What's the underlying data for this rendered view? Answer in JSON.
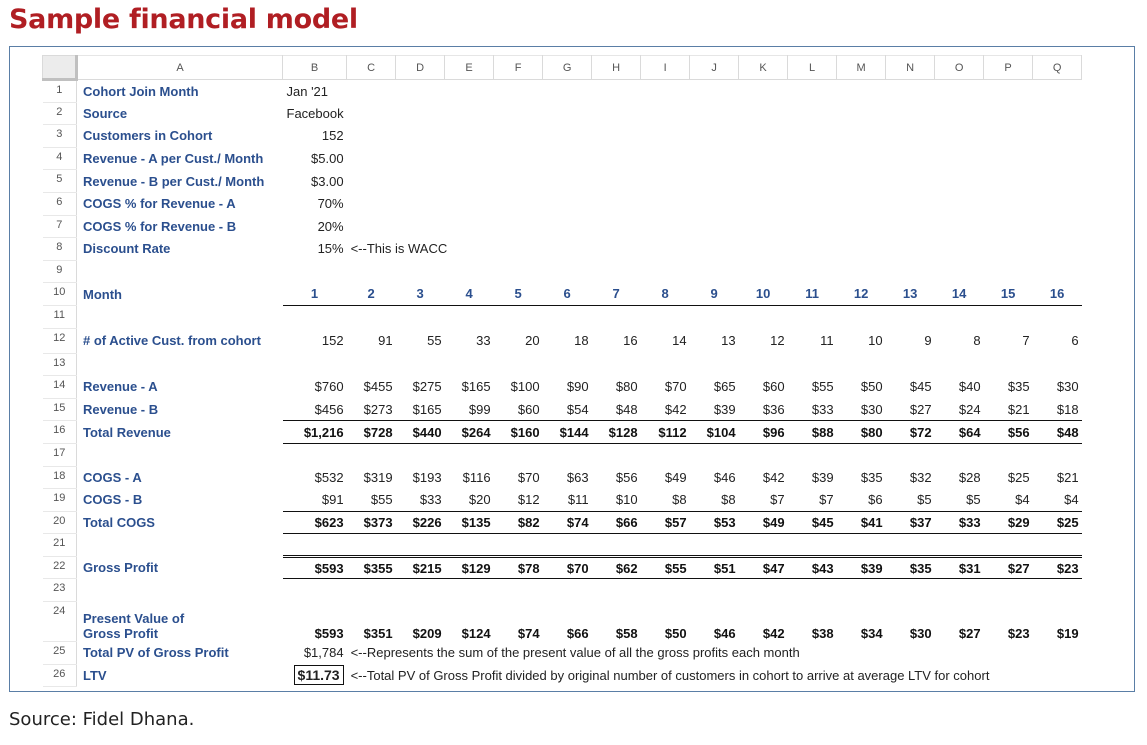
{
  "title": "Sample financial model",
  "source": "Source: Fidel Dhana.",
  "columns": [
    "A",
    "B",
    "C",
    "D",
    "E",
    "F",
    "G",
    "H",
    "I",
    "J",
    "K",
    "L",
    "M",
    "N",
    "O",
    "P",
    "Q"
  ],
  "inputs": {
    "r1": {
      "num": "1",
      "label": "Cohort Join Month",
      "value": "Jan '21"
    },
    "r2": {
      "num": "2",
      "label": "Source",
      "value": "Facebook"
    },
    "r3": {
      "num": "3",
      "label": "Customers in Cohort",
      "value": "152"
    },
    "r4": {
      "num": "4",
      "label": "Revenue - A per Cust./ Month",
      "value": "$5.00"
    },
    "r5": {
      "num": "5",
      "label": "Revenue - B per Cust./ Month",
      "value": "$3.00"
    },
    "r6": {
      "num": "6",
      "label": "COGS % for Revenue - A",
      "value": "70%"
    },
    "r7": {
      "num": "7",
      "label": "COGS % for Revenue - B",
      "value": "20%"
    },
    "r8": {
      "num": "8",
      "label": "Discount Rate",
      "value": "15%",
      "note": "<--This is WACC"
    }
  },
  "blank_rows": {
    "r9": "9",
    "r11": "11",
    "r13": "13",
    "r17": "17",
    "r21": "21",
    "r23": "23"
  },
  "month": {
    "num": "10",
    "label": "Month",
    "values": [
      "1",
      "2",
      "3",
      "4",
      "5",
      "6",
      "7",
      "8",
      "9",
      "10",
      "11",
      "12",
      "13",
      "14",
      "15",
      "16"
    ]
  },
  "active": {
    "num": "12",
    "label": "# of Active Cust. from cohort",
    "values": [
      "152",
      "91",
      "55",
      "33",
      "20",
      "18",
      "16",
      "14",
      "13",
      "12",
      "11",
      "10",
      "9",
      "8",
      "7",
      "6"
    ]
  },
  "rev_a": {
    "num": "14",
    "label": "Revenue - A",
    "values": [
      "$760",
      "$455",
      "$275",
      "$165",
      "$100",
      "$90",
      "$80",
      "$70",
      "$65",
      "$60",
      "$55",
      "$50",
      "$45",
      "$40",
      "$35",
      "$30"
    ]
  },
  "rev_b": {
    "num": "15",
    "label": "Revenue - B",
    "values": [
      "$456",
      "$273",
      "$165",
      "$99",
      "$60",
      "$54",
      "$48",
      "$42",
      "$39",
      "$36",
      "$33",
      "$30",
      "$27",
      "$24",
      "$21",
      "$18"
    ]
  },
  "total_rev": {
    "num": "16",
    "label": "Total Revenue",
    "values": [
      "$1,216",
      "$728",
      "$440",
      "$264",
      "$160",
      "$144",
      "$128",
      "$112",
      "$104",
      "$96",
      "$88",
      "$80",
      "$72",
      "$64",
      "$56",
      "$48"
    ]
  },
  "cogs_a": {
    "num": "18",
    "label": "COGS - A",
    "values": [
      "$532",
      "$319",
      "$193",
      "$116",
      "$70",
      "$63",
      "$56",
      "$49",
      "$46",
      "$42",
      "$39",
      "$35",
      "$32",
      "$28",
      "$25",
      "$21"
    ]
  },
  "cogs_b": {
    "num": "19",
    "label": "COGS - B",
    "values": [
      "$91",
      "$55",
      "$33",
      "$20",
      "$12",
      "$11",
      "$10",
      "$8",
      "$8",
      "$7",
      "$7",
      "$6",
      "$5",
      "$5",
      "$4",
      "$4"
    ]
  },
  "total_cogs": {
    "num": "20",
    "label": "Total COGS",
    "values": [
      "$623",
      "$373",
      "$226",
      "$135",
      "$82",
      "$74",
      "$66",
      "$57",
      "$53",
      "$49",
      "$45",
      "$41",
      "$37",
      "$33",
      "$29",
      "$25"
    ]
  },
  "gross": {
    "num": "22",
    "label": "Gross Profit",
    "values": [
      "$593",
      "$355",
      "$215",
      "$129",
      "$78",
      "$70",
      "$62",
      "$55",
      "$51",
      "$47",
      "$43",
      "$39",
      "$35",
      "$31",
      "$27",
      "$23"
    ]
  },
  "pv": {
    "num": "24",
    "label_line1": "Present Value of",
    "label_line2": "Gross Profit",
    "values": [
      "$593",
      "$351",
      "$209",
      "$124",
      "$74",
      "$66",
      "$58",
      "$50",
      "$46",
      "$42",
      "$38",
      "$34",
      "$30",
      "$27",
      "$23",
      "$19"
    ]
  },
  "total_pv": {
    "num": "25",
    "label": "Total PV of Gross Profit",
    "value": "$1,784",
    "note": "<--Represents the sum of the present value of all the gross profits each month"
  },
  "ltv": {
    "num": "26",
    "label": "LTV",
    "value": "$11.73",
    "note": "<--Total PV of Gross Profit divided by original number of customers in cohort to arrive at average LTV for cohort"
  }
}
